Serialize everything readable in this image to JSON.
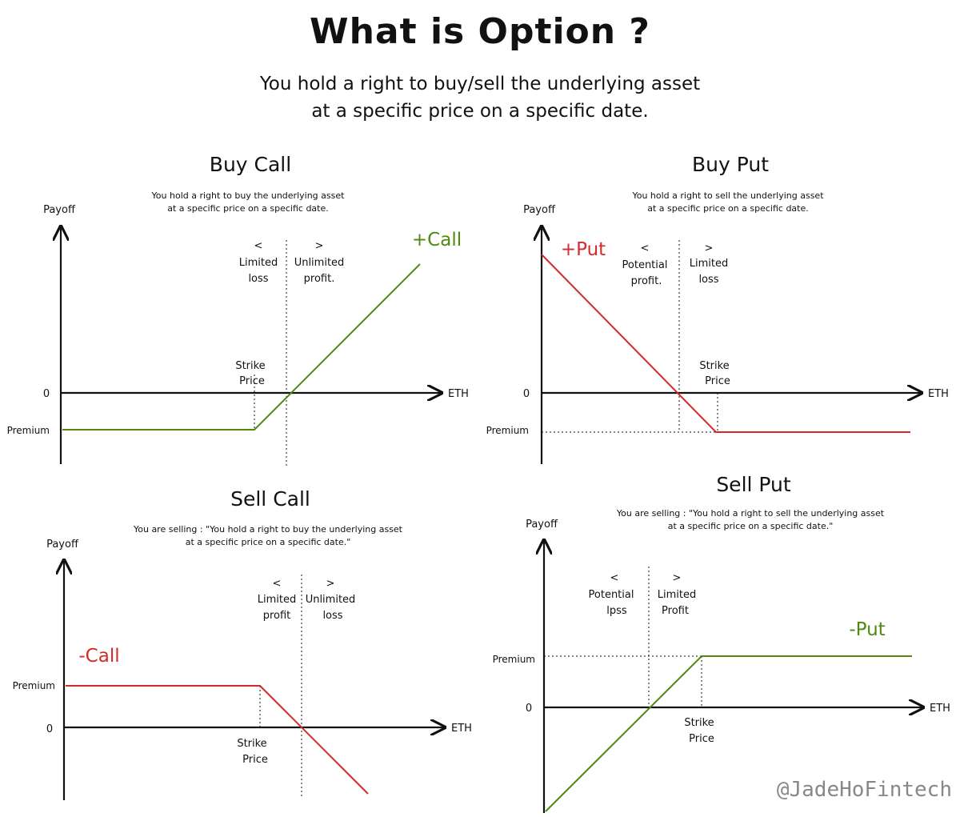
{
  "title": "What is Option ?",
  "subtitle_line1": "You hold a right to buy/sell the underlying asset",
  "subtitle_line2": "at a specific price on a specific date.",
  "watermark": "@JadeHoFintech",
  "colors": {
    "green": "#4f8a10",
    "red": "#d42a2a"
  },
  "panels": {
    "buy_call": {
      "title": "Buy Call",
      "desc1": "You hold a right to buy the underlying asset",
      "desc2": "at a specific price on a specific date.",
      "yaxis": "Payoff",
      "xaxis": "ETH",
      "zero": "0",
      "premium": "Premium",
      "left_arrow": "<",
      "left_1": "Limited",
      "left_2": "loss",
      "right_arrow": ">",
      "right_1": "Unlimited",
      "right_2": "profit.",
      "strike_1": "Strike",
      "strike_2": "Price",
      "line_label": "+Call"
    },
    "buy_put": {
      "title": "Buy Put",
      "desc1": "You hold a right to sell the underlying asset",
      "desc2": "at a specific price on a specific date.",
      "yaxis": "Payoff",
      "xaxis": "ETH",
      "zero": "0",
      "premium": "Premium",
      "left_arrow": "<",
      "left_1": "Potential",
      "left_2": "profit.",
      "right_arrow": ">",
      "right_1": "Limited",
      "right_2": "loss",
      "strike_1": "Strike",
      "strike_2": "Price",
      "line_label": "+Put"
    },
    "sell_call": {
      "title": "Sell Call",
      "desc1": "You are selling : \"You hold a right to buy the underlying asset",
      "desc2": "at a specific price on a specific date.\"",
      "yaxis": "Payoff",
      "xaxis": "ETH",
      "zero": "0",
      "premium": "Premium",
      "left_arrow": "<",
      "left_1": "Limited",
      "left_2": "profit",
      "right_arrow": ">",
      "right_1": "Unlimited",
      "right_2": "loss",
      "strike_1": "Strike",
      "strike_2": "Price",
      "line_label": "-Call"
    },
    "sell_put": {
      "title": "Sell Put",
      "desc1": "You are selling : \"You hold a right to sell the underlying asset",
      "desc2": "at a specific price on a specific date.\"",
      "yaxis": "Payoff",
      "xaxis": "ETH",
      "zero": "0",
      "premium": "Premium",
      "left_arrow": "<",
      "left_1": "Potential",
      "left_2": "lpss",
      "right_arrow": ">",
      "right_1": "Limited",
      "right_2": "Profit",
      "strike_1": "Strike",
      "strike_2": "Price",
      "line_label": "-Put"
    }
  }
}
